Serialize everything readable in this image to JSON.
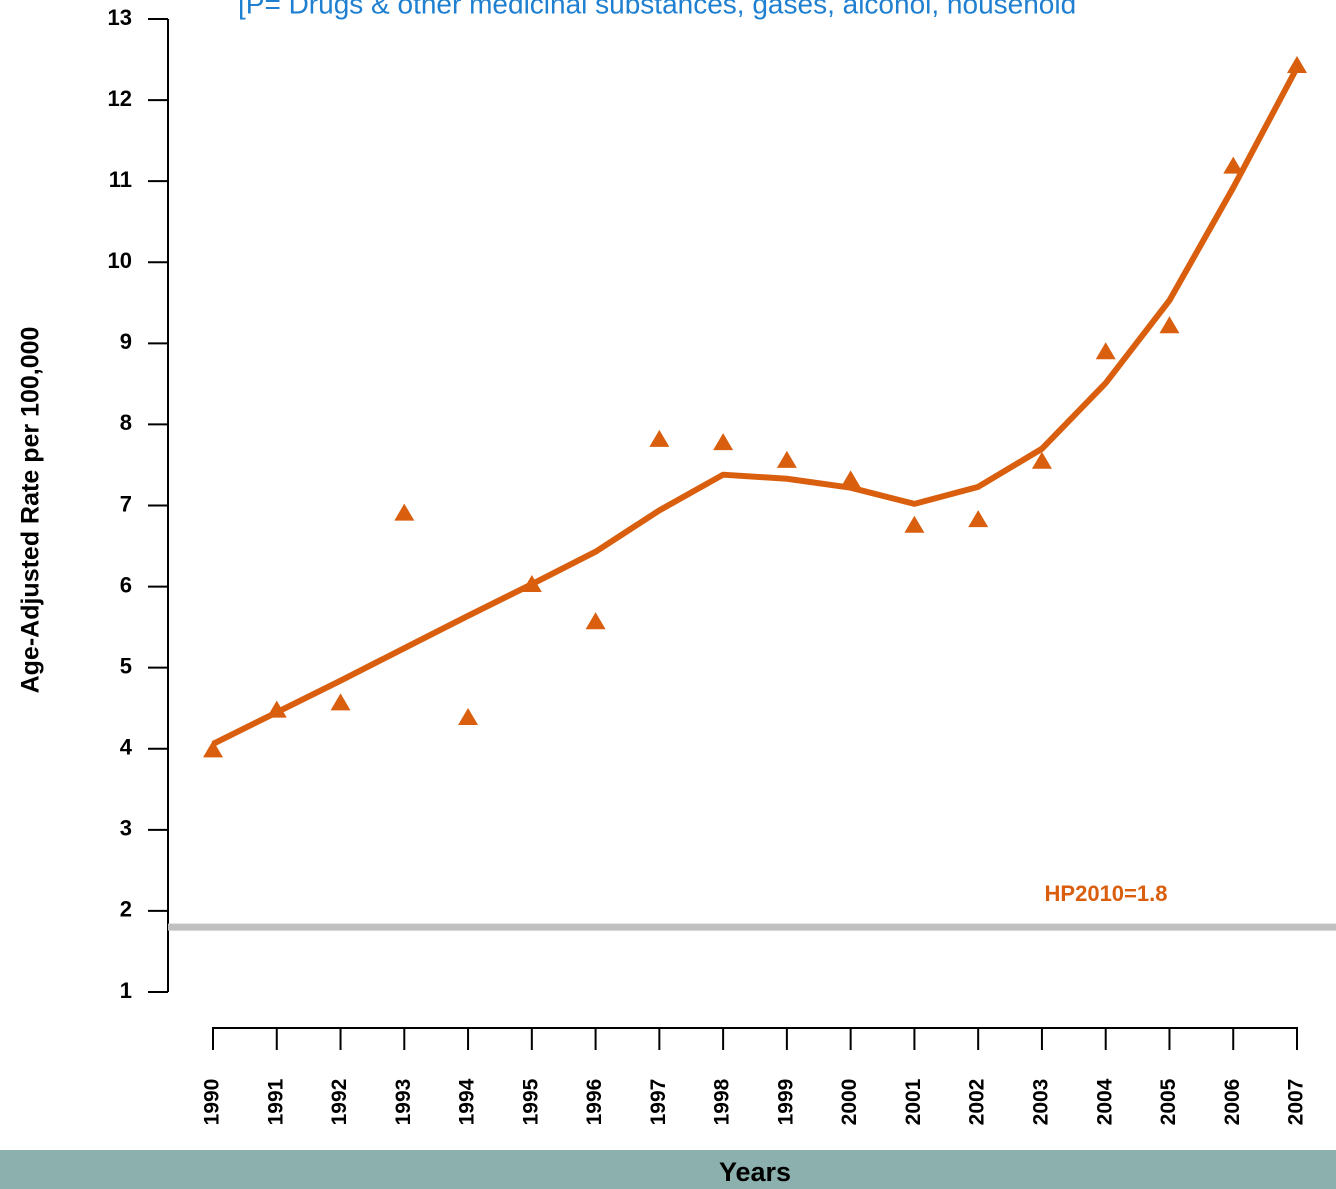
{
  "chart_data": {
    "type": "line",
    "title": "[P= Drugs & other medicinal substances, gases, alcohol, household",
    "title_color": "#1f7fd0",
    "x_label": "Years",
    "y_label": "Age-Adjusted Rate per 100,000",
    "categories": [
      "1990",
      "1991",
      "1992",
      "1993",
      "1994",
      "1995",
      "1996",
      "1997",
      "1998",
      "1999",
      "2000",
      "2001",
      "2002",
      "2003",
      "2004",
      "2005",
      "2006",
      "2007"
    ],
    "series": [
      {
        "color": "#d95f0e",
        "marker": "triangle",
        "line": false,
        "values": [
          3.98,
          4.47,
          4.56,
          6.9,
          4.38,
          6.02,
          5.56,
          7.81,
          7.77,
          7.55,
          7.31,
          6.75,
          6.82,
          7.54,
          8.89,
          9.21,
          11.18,
          12.42
        ]
      },
      {
        "color": "#d95f0e",
        "marker": "none",
        "line": true,
        "values": [
          4.06,
          4.45,
          4.84,
          5.24,
          5.64,
          6.03,
          6.43,
          6.94,
          7.38,
          7.33,
          7.22,
          7.02,
          7.23,
          7.7,
          8.51,
          9.53,
          10.92,
          12.4
        ]
      }
    ],
    "reference_line": {
      "value": 1.8,
      "label": "HP2010=1.8",
      "color": "#c0c0c0",
      "label_color": "#d95f0e"
    },
    "ylim": [
      1,
      13
    ],
    "yticks": [
      1,
      2,
      3,
      4,
      5,
      6,
      7,
      8,
      9,
      10,
      11,
      12,
      13
    ],
    "grid": false,
    "footer_color": "#8cb0ae"
  }
}
